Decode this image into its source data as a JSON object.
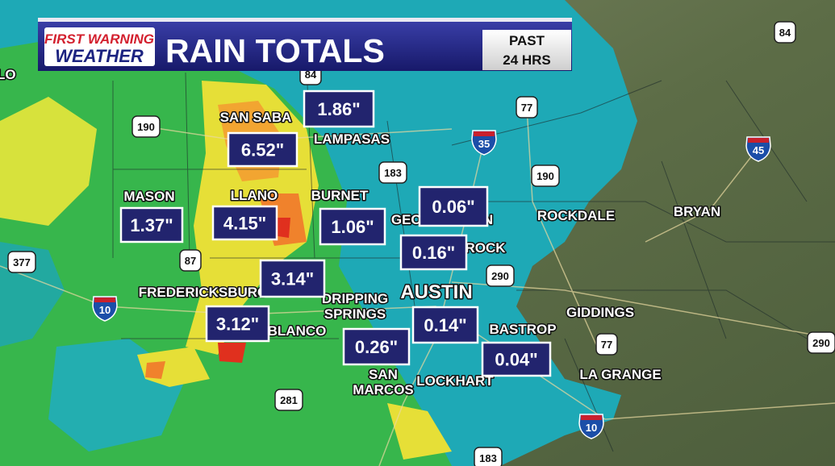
{
  "header": {
    "logo_line1": "FIRST WARNING",
    "logo_line2": "WEATHER",
    "title": "RAIN TOTALS",
    "period_line1": "PAST",
    "period_line2": "24 HRS"
  },
  "totals": [
    "1.86\"",
    "6.52\"",
    "1.37\"",
    "4.15\"",
    "1.06\"",
    "0.06\"",
    "0.16\"",
    "3.14\"",
    "3.12\"",
    "0.26\"",
    "0.14\"",
    "0.04\""
  ],
  "cities": [
    [
      "SAN SABA"
    ],
    [
      "LAMPASAS"
    ],
    [
      "MASON"
    ],
    [
      "LLANO"
    ],
    [
      "BURNET"
    ],
    [
      "GEORGETOWN"
    ],
    [
      "ROUND ROCK"
    ],
    [
      "ROCKDALE"
    ],
    [
      "BRYAN"
    ],
    [
      "FREDERICKSBURG"
    ],
    [
      "DRIPPING",
      "SPRINGS"
    ],
    [
      "AUSTIN"
    ],
    [
      "BLANCO"
    ],
    [
      "GIDDINGS"
    ],
    [
      "BASTROP"
    ],
    [
      "SAN",
      "MARCOS"
    ],
    [
      "LOCKHART"
    ],
    [
      "LA GRANGE"
    ],
    [
      "LO"
    ]
  ],
  "highways": [
    {
      "number": "84",
      "kind": "us"
    },
    {
      "number": "84",
      "kind": "us"
    },
    {
      "number": "190",
      "kind": "us"
    },
    {
      "number": "77",
      "kind": "us"
    },
    {
      "number": "35",
      "kind": "interstate"
    },
    {
      "number": "183",
      "kind": "us"
    },
    {
      "number": "190",
      "kind": "us"
    },
    {
      "number": "45",
      "kind": "interstate"
    },
    {
      "number": "87",
      "kind": "us"
    },
    {
      "number": "377",
      "kind": "us"
    },
    {
      "number": "290",
      "kind": "us"
    },
    {
      "number": "10",
      "kind": "interstate"
    },
    {
      "number": "77",
      "kind": "us"
    },
    {
      "number": "290",
      "kind": "us"
    },
    {
      "number": "281",
      "kind": "us"
    },
    {
      "number": "10",
      "kind": "interstate"
    },
    {
      "number": "183",
      "kind": "us"
    }
  ]
}
